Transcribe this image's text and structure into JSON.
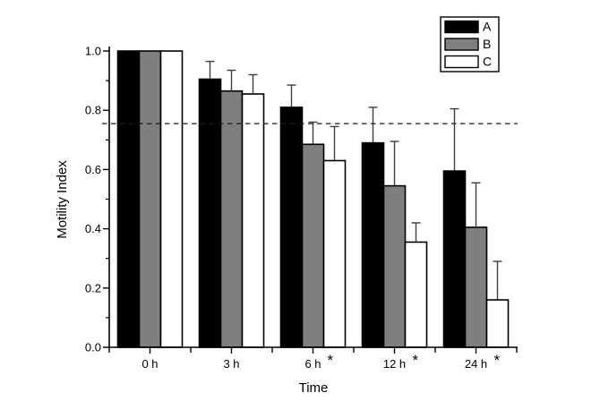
{
  "figure": {
    "background": "#ffffff"
  },
  "chart_data": {
    "type": "bar",
    "title": "",
    "xlabel": "Time",
    "ylabel": "Motility Index",
    "categories": [
      "0 h",
      "3 h",
      "6 h",
      "12 h",
      "24 h"
    ],
    "significant_categories": [
      false,
      false,
      true,
      true,
      true
    ],
    "significance_marker": "*",
    "series": [
      {
        "name": "A",
        "color": "#000000",
        "values": [
          1.0,
          0.905,
          0.81,
          0.69,
          0.595
        ],
        "errors_plus": [
          0,
          0.06,
          0.075,
          0.12,
          0.21
        ]
      },
      {
        "name": "B",
        "color": "#7f7f7f",
        "values": [
          1.0,
          0.865,
          0.685,
          0.545,
          0.405
        ],
        "errors_plus": [
          0,
          0.07,
          0.075,
          0.15,
          0.15
        ]
      },
      {
        "name": "C",
        "color": "#ffffff",
        "values": [
          1.0,
          0.855,
          0.63,
          0.355,
          0.16
        ],
        "errors_plus": [
          0,
          0.065,
          0.115,
          0.065,
          0.13
        ]
      }
    ],
    "ylim": [
      0.0,
      1.0
    ],
    "y_ticks": [
      {
        "value": 0.0,
        "label": "0.0"
      },
      {
        "value": 0.2,
        "label": "0.2"
      },
      {
        "value": 0.4,
        "label": "0.4"
      },
      {
        "value": 0.6,
        "label": "0.6"
      },
      {
        "value": 0.8,
        "label": "0.8"
      },
      {
        "value": 1.0,
        "label": "1.0"
      }
    ],
    "y_minor_ticks": [
      0.1,
      0.3,
      0.5,
      0.7,
      0.9
    ],
    "reference_line": {
      "value": 0.755,
      "style": "dashed",
      "color": "#1a1a1a"
    },
    "legend": {
      "position": "top-right",
      "entries": [
        "A",
        "B",
        "C"
      ]
    },
    "grid": false,
    "bar_edge_color": "#000000",
    "error_bar_color": "#3d3d3d",
    "axis_color": "#000000"
  }
}
